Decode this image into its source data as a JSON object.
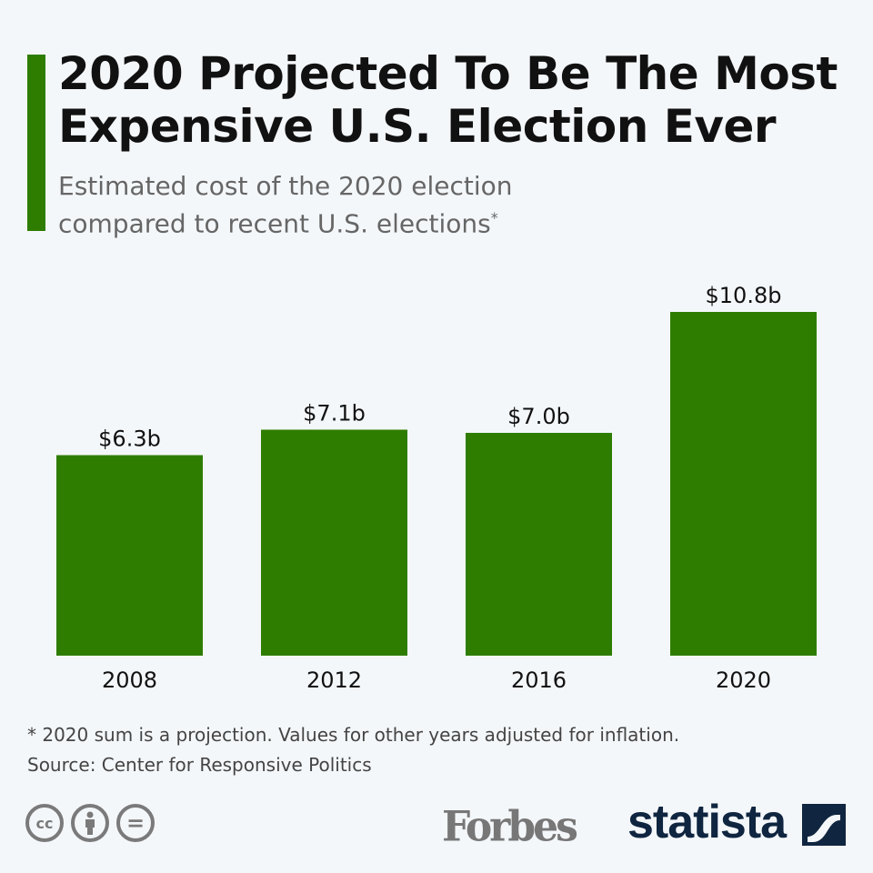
{
  "header": {
    "title_line1": "2020 Projected To Be The Most",
    "title_line2": "Expensive U.S. Election Ever",
    "subtitle_line1": "Estimated cost of the 2020 election",
    "subtitle_line2": "compared to recent U.S. elections",
    "subtitle_mark": "*"
  },
  "chart_data": {
    "type": "bar",
    "title": "2020 Projected To Be The Most Expensive U.S. Election Ever",
    "categories": [
      "2008",
      "2012",
      "2016",
      "2020"
    ],
    "values": [
      6.3,
      7.1,
      7.0,
      10.8
    ],
    "labels": [
      "$6.3b",
      "$7.1b",
      "$7.0b",
      "$10.8b"
    ],
    "unit": "billion USD",
    "xlabel": "",
    "ylabel": "",
    "ylim": [
      0,
      10.8
    ],
    "grid": false,
    "color": "#2e7d00"
  },
  "footer": {
    "note": "* 2020 sum is a projection. Values for other years adjusted for inflation.",
    "source": "Source: Center for Responsive Politics",
    "forbes": "Forbes",
    "statista": "statista",
    "cc_label": "cc",
    "eq_label": "="
  }
}
